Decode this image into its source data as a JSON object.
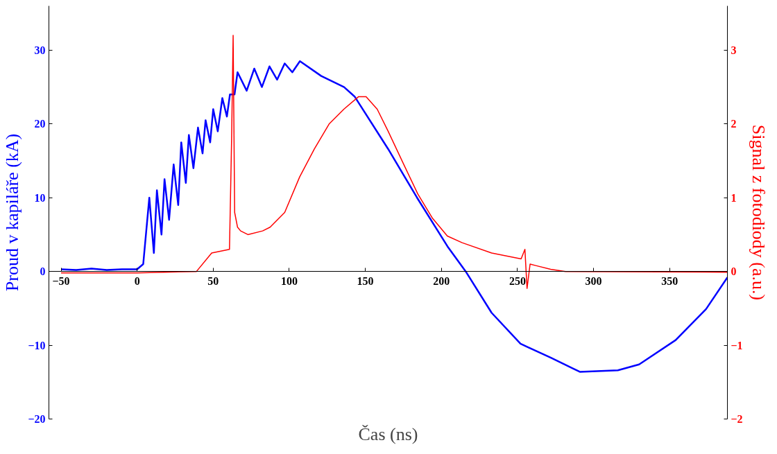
{
  "chart_data": {
    "type": "line",
    "xlabel": "Čas (ns)",
    "ylabel": "Proud v kapiláře (kA)",
    "y2label": "Signal z fotodiody (a.u.)",
    "xlim": [
      -58,
      388
    ],
    "xticks": [
      -50,
      0,
      50,
      100,
      150,
      200,
      250,
      300,
      350
    ],
    "ylim": [
      -20,
      36
    ],
    "yticks": [
      -20,
      -10,
      0,
      10,
      20,
      30
    ],
    "y2lim": [
      -2,
      3.6
    ],
    "y2ticks": [
      -2,
      -1,
      0,
      1,
      2,
      3
    ],
    "grid": false,
    "marker": "none",
    "line_style": "solid",
    "series": [
      {
        "color": "#0000ff",
        "axis": "y",
        "x": [
          -50,
          -40,
          -30,
          -20,
          -10,
          0,
          4,
          8,
          11,
          13,
          16,
          18,
          21,
          24,
          27,
          29,
          32,
          34,
          37,
          40,
          43,
          45,
          48,
          50,
          53,
          56,
          59,
          61,
          64,
          66,
          72,
          77,
          82,
          87,
          92,
          97,
          102,
          107,
          121,
          136,
          143,
          165,
          184,
          204,
          216,
          233,
          252,
          272,
          286,
          291,
          316,
          330,
          354,
          374,
          388
        ],
        "values": [
          0.3,
          0.2,
          0.4,
          0.2,
          0.3,
          0.3,
          1,
          10,
          2.5,
          11,
          5,
          12.5,
          7,
          14.5,
          9,
          17.5,
          12,
          18.5,
          14,
          19.5,
          16,
          20.5,
          17.5,
          22,
          19,
          23.5,
          21,
          24,
          24,
          27,
          24.5,
          27.5,
          25,
          27.8,
          26,
          28.2,
          27,
          28.5,
          26.5,
          25,
          23.7,
          16.6,
          10,
          3.4,
          0,
          -5.6,
          -9.8,
          -11.7,
          -13.1,
          -13.6,
          -13.4,
          -12.6,
          -9.3,
          -5.1,
          -0.8
        ]
      },
      {
        "color": "#ff0000",
        "axis": "y2",
        "x": [
          -50,
          0,
          39,
          49,
          60.7,
          62.1,
          63.1,
          64.1,
          66,
          68,
          72.8,
          82.5,
          87.4,
          97,
          106.8,
          116.5,
          126.2,
          135.9,
          145.6,
          150.5,
          157.8,
          165,
          174.8,
          184.5,
          194.2,
          203.9,
          213.6,
          233,
          252.4,
          254.9,
          256.3,
          258.3,
          262,
          271.8,
          281.6,
          388
        ],
        "values": [
          -0.02,
          -0.02,
          0,
          0.25,
          0.3,
          1.8,
          3.2,
          0.8,
          0.6,
          0.55,
          0.5,
          0.55,
          0.6,
          0.8,
          1.28,
          1.66,
          2.0,
          2.2,
          2.37,
          2.37,
          2.2,
          1.9,
          1.47,
          1.05,
          0.72,
          0.48,
          0.39,
          0.25,
          0.17,
          0.3,
          -0.23,
          0.1,
          0.08,
          0.03,
          0,
          -0.01
        ]
      }
    ]
  }
}
